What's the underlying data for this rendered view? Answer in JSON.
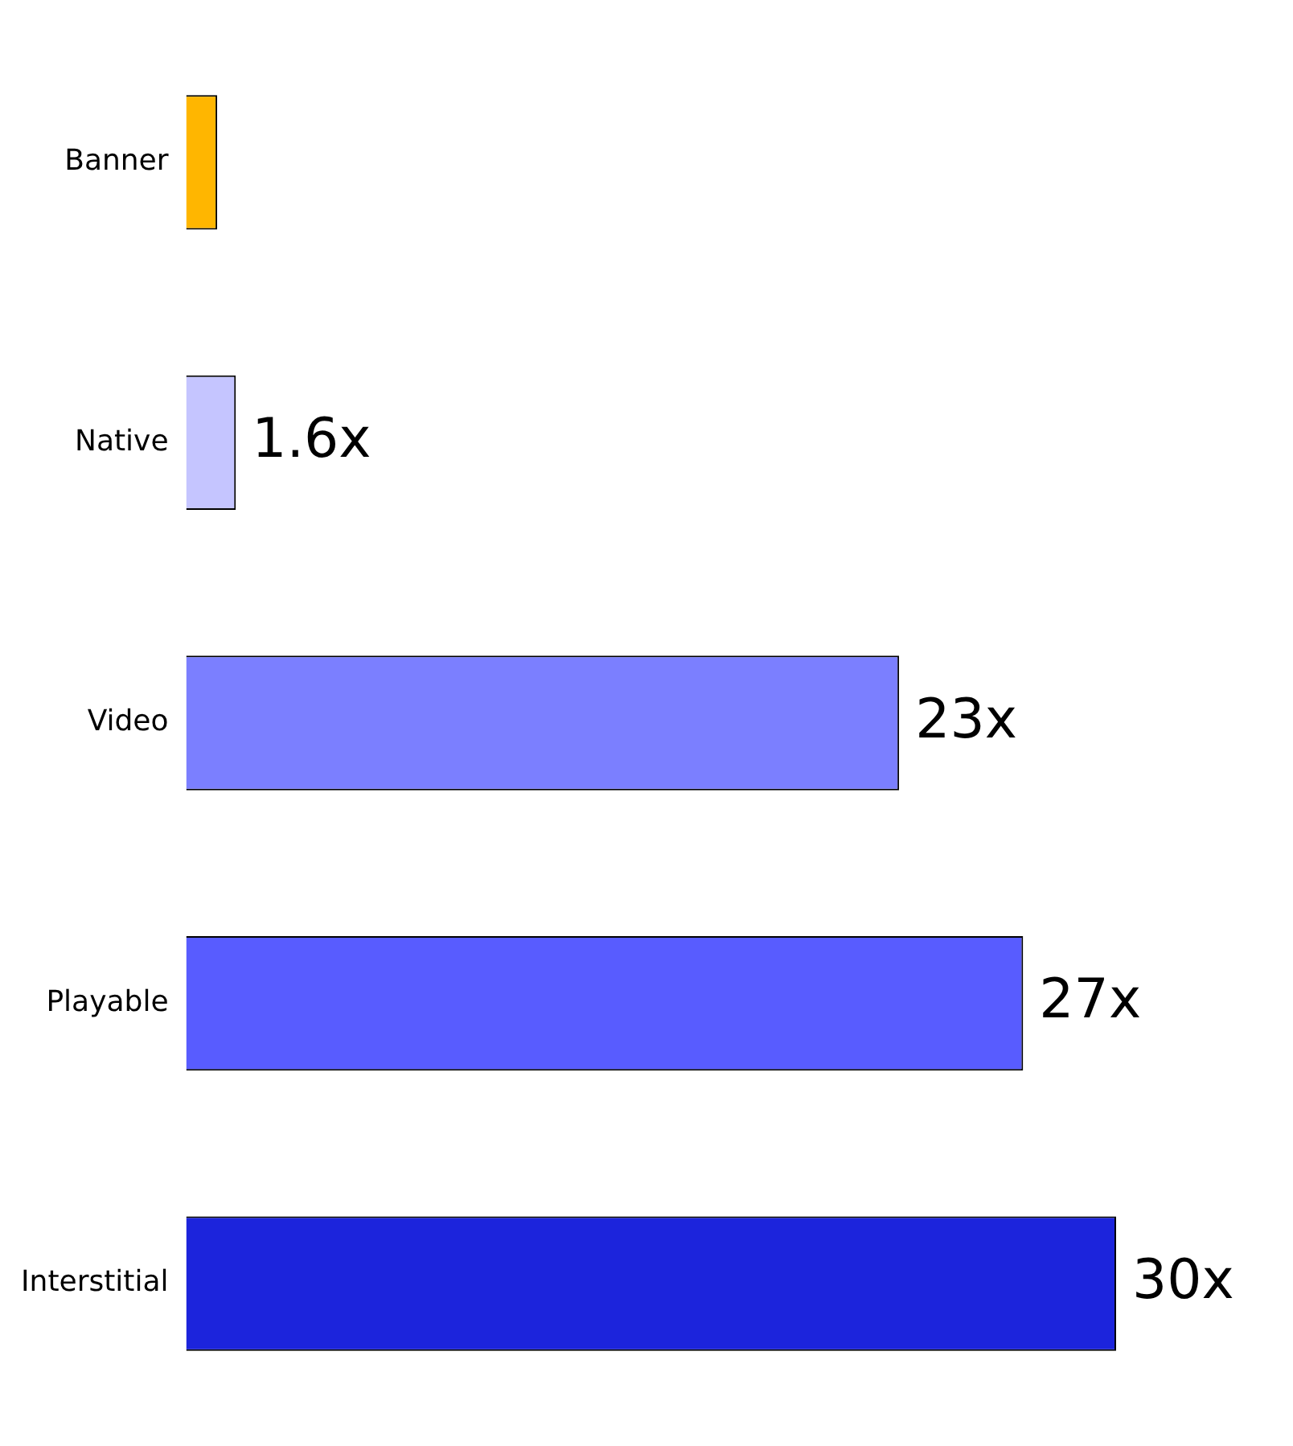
{
  "chart_data": {
    "type": "bar",
    "orientation": "horizontal",
    "categories": [
      "Banner",
      "Native",
      "Video",
      "Playable",
      "Interstitial"
    ],
    "values": [
      1,
      1.6,
      23,
      27,
      30
    ],
    "value_labels": [
      null,
      "1.6x",
      "23x",
      "27x",
      "30x"
    ],
    "colors": [
      "#ffb600",
      "#c5c5ff",
      "#7b7fff",
      "#585cff",
      "#1c24dc"
    ],
    "legend": false,
    "tick_labels": "y"
  }
}
